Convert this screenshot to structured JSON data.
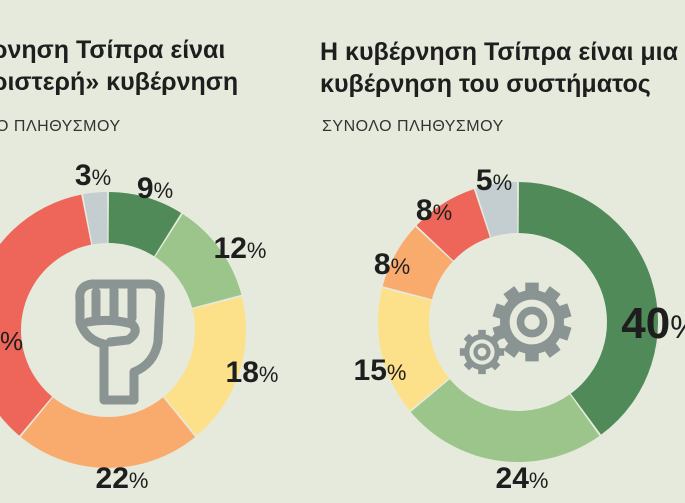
{
  "colors": {
    "background": "#e6eadc",
    "dark_green": "#4f8a58",
    "light_green": "#9cc58b",
    "yellow": "#fde08a",
    "orange": "#f9ab6e",
    "red": "#ee6659",
    "gray": "#c4cdd0",
    "icon": "#8a9493"
  },
  "chart_data": [
    {
      "type": "pie",
      "variant": "donut",
      "title_lines": [
        "ρνηση Τσίπρα είναι",
        "ριστερή» κυβέρνηση"
      ],
      "subtitle": "Ο ΠΛΗΘΥΣΜΟΥ",
      "icon": "raised-fist-icon",
      "slices": [
        {
          "value": 9,
          "label": "9",
          "color": "#4f8a58"
        },
        {
          "value": 12,
          "label": "12",
          "color": "#9cc58b"
        },
        {
          "value": 18,
          "label": "18",
          "color": "#fde08a"
        },
        {
          "value": 22,
          "label": "22",
          "color": "#f9ab6e"
        },
        {
          "value": 36,
          "label": "",
          "color": "#ee6659"
        },
        {
          "value": 3,
          "label": "3",
          "color": "#c4cdd0"
        }
      ],
      "partial_label": "%",
      "unit": "%"
    },
    {
      "type": "pie",
      "variant": "donut",
      "title_lines": [
        "Η κυβέρνηση Τσίπρα είναι μια",
        "κυβέρνηση του συστήματος"
      ],
      "subtitle": "ΣΥΝΟΛΟ ΠΛΗΘΥΣΜΟΥ",
      "icon": "gears-icon",
      "slices": [
        {
          "value": 40,
          "label": "40",
          "color": "#4f8a58"
        },
        {
          "value": 24,
          "label": "24",
          "color": "#9cc58b"
        },
        {
          "value": 15,
          "label": "15",
          "color": "#fde08a"
        },
        {
          "value": 8,
          "label": "8",
          "color": "#f9ab6e"
        },
        {
          "value": 8,
          "label": "8",
          "color": "#ee6659"
        },
        {
          "value": 5,
          "label": "5",
          "color": "#c4cdd0"
        }
      ],
      "unit": "%"
    }
  ]
}
